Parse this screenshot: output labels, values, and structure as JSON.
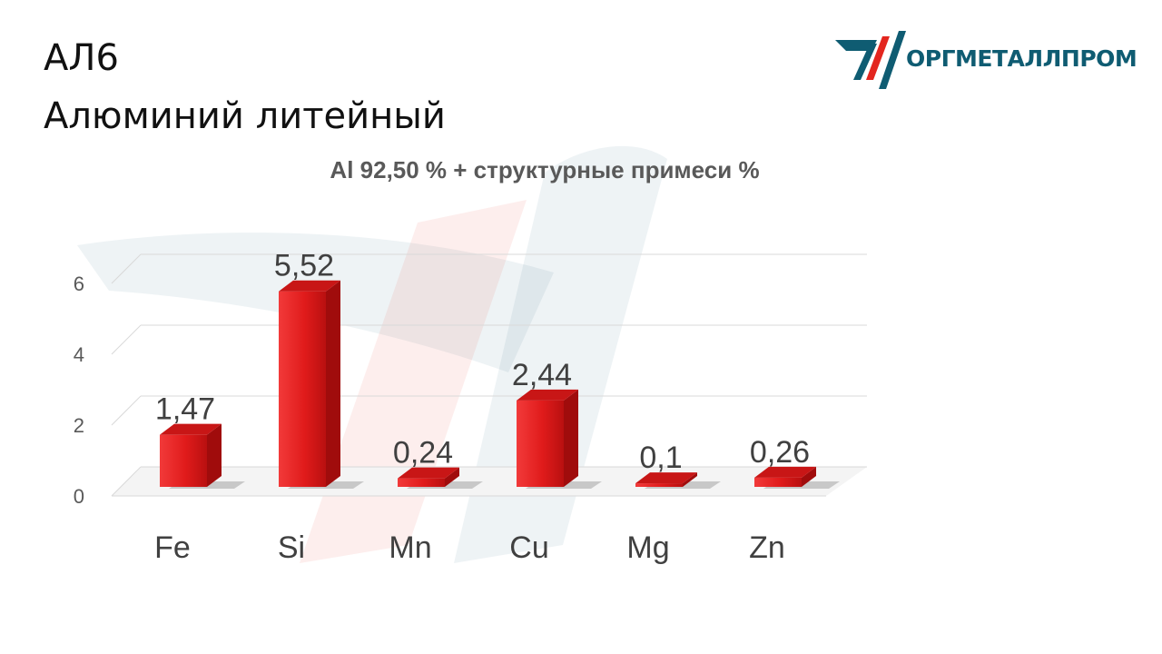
{
  "slide": {
    "title_line1": "АЛ6",
    "title_line2": "Алюминий литейный",
    "logo_text": "ОРГМЕТАЛЛПРОМ"
  },
  "colors": {
    "bar_front": "#e01b1b",
    "bar_side": "#a00c0c",
    "bar_top": "#c81616",
    "logo_red": "#e3261f",
    "logo_teal": "#0f5c72",
    "grid": "#d9d9d9",
    "axis_text": "#595959"
  },
  "chart_data": {
    "type": "bar",
    "title": "Al 92,50 % + структурные примеси %",
    "categories": [
      "Fe",
      "Si",
      "Mn",
      "Cu",
      "Mg",
      "Zn"
    ],
    "values": [
      1.47,
      5.52,
      0.24,
      2.44,
      0.1,
      0.26
    ],
    "value_labels": [
      "1,47",
      "5,52",
      "0,24",
      "2,44",
      "0,1",
      "0,26"
    ],
    "yticks": [
      "0",
      "2",
      "4",
      "6"
    ],
    "ylim": [
      0,
      6
    ],
    "grid": true,
    "three_d": true,
    "xlabel": "",
    "ylabel": ""
  }
}
